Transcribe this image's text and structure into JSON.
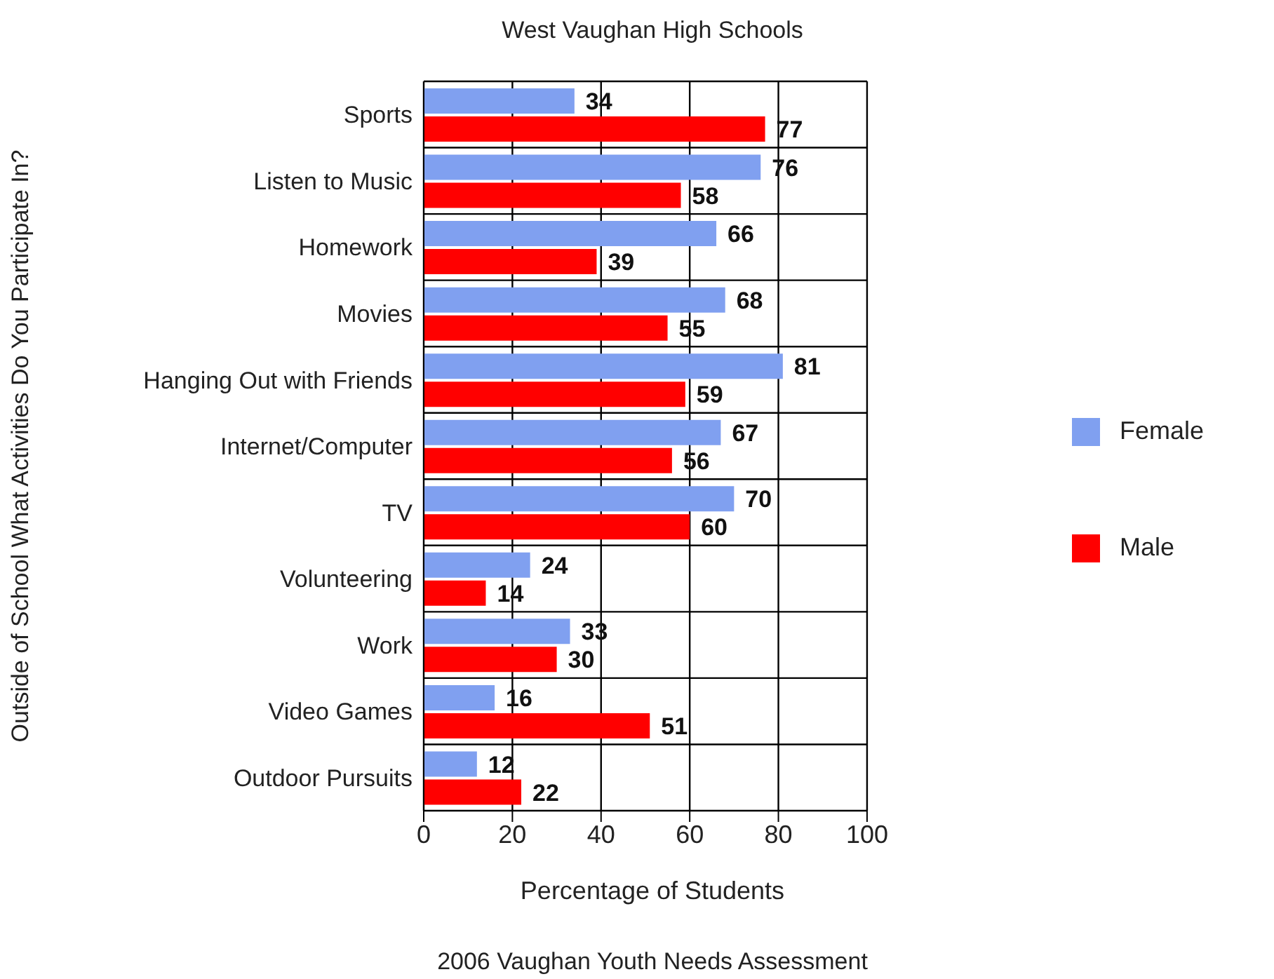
{
  "chart_data": {
    "type": "bar",
    "orientation": "horizontal",
    "title": "West Vaughan High Schools",
    "xlabel": "Percentage of Students",
    "ylabel": "Outside of School What Activities Do You Participate In?",
    "annotations": [
      "2006 Vaughan Youth Needs Assessment"
    ],
    "categories": [
      "Sports",
      "Listen to Music",
      "Homework",
      "Movies",
      "Hanging Out with Friends",
      "Internet/Computer",
      "TV",
      "Volunteering",
      "Work",
      "Video Games",
      "Outdoor Pursuits"
    ],
    "series": [
      {
        "name": "Female",
        "color": "#80a0f0",
        "values": [
          34,
          76,
          66,
          68,
          81,
          67,
          70,
          24,
          33,
          16,
          12
        ]
      },
      {
        "name": "Male",
        "color": "#ff0000",
        "values": [
          77,
          58,
          39,
          55,
          59,
          56,
          60,
          14,
          30,
          51,
          22
        ]
      }
    ],
    "xlim": [
      0,
      100
    ],
    "xticks": [
      0,
      20,
      40,
      60,
      80,
      100
    ],
    "grid": true,
    "legend": "right",
    "data_labels": true
  }
}
